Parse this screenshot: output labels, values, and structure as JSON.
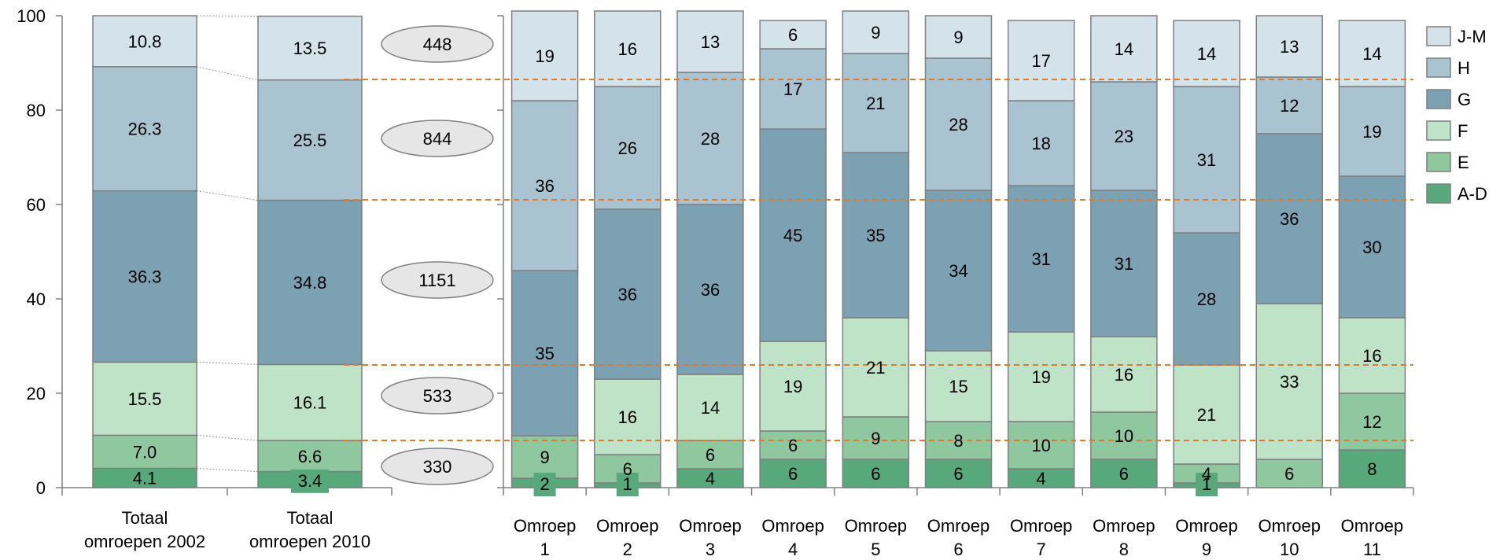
{
  "chart_data": {
    "type": "bar",
    "stacked": true,
    "ylim": [
      0,
      100
    ],
    "yticks": [
      0,
      20,
      40,
      60,
      80,
      100
    ],
    "series": [
      {
        "name": "A-D",
        "color": "#57a97c"
      },
      {
        "name": "E",
        "color": "#8fc79e"
      },
      {
        "name": "F",
        "color": "#bfe3c6"
      },
      {
        "name": "G",
        "color": "#7ba1b3"
      },
      {
        "name": "H",
        "color": "#a9c4d0"
      },
      {
        "name": "J-M",
        "color": "#d4e3ea"
      }
    ],
    "legend": [
      "J-M",
      "H",
      "G",
      "F",
      "E",
      "A-D"
    ],
    "legend_position": "right",
    "bars": [
      {
        "label": [
          "Totaal",
          "omroepen 2002"
        ],
        "values": [
          4.1,
          7.0,
          15.5,
          36.3,
          26.3,
          10.8
        ],
        "labels": [
          "4.1",
          "7.0",
          "15.5",
          "36.3",
          "26.3",
          "10.8"
        ]
      },
      {
        "label": [
          "Totaal",
          "omroepen 2010"
        ],
        "values": [
          3.4,
          6.6,
          16.1,
          34.8,
          25.5,
          13.5
        ],
        "labels": [
          "3.4",
          "6.6",
          "16.1",
          "34.8",
          "25.5",
          "13.5"
        ]
      },
      {
        "label": [
          "Omroep",
          "1"
        ],
        "values": [
          2,
          9,
          0,
          35,
          36,
          19
        ],
        "labels": [
          "2",
          "9",
          "",
          "35",
          "36",
          "19"
        ]
      },
      {
        "label": [
          "Omroep",
          "2"
        ],
        "values": [
          1,
          6,
          16,
          36,
          26,
          16
        ],
        "labels": [
          "1",
          "6",
          "16",
          "36",
          "26",
          "16"
        ]
      },
      {
        "label": [
          "Omroep",
          "3"
        ],
        "values": [
          4,
          6,
          14,
          36,
          28,
          13
        ],
        "labels": [
          "4",
          "6",
          "14",
          "36",
          "28",
          "13"
        ]
      },
      {
        "label": [
          "Omroep",
          "4"
        ],
        "values": [
          6,
          6,
          19,
          45,
          17,
          6
        ],
        "labels": [
          "6",
          "6",
          "19",
          "45",
          "17",
          "6"
        ]
      },
      {
        "label": [
          "Omroep",
          "5"
        ],
        "values": [
          6,
          9,
          21,
          35,
          21,
          9
        ],
        "labels": [
          "6",
          "9",
          "21",
          "35",
          "21",
          "9"
        ]
      },
      {
        "label": [
          "Omroep",
          "6"
        ],
        "values": [
          6,
          8,
          15,
          34,
          28,
          9
        ],
        "labels": [
          "6",
          "8",
          "15",
          "34",
          "28",
          "9"
        ]
      },
      {
        "label": [
          "Omroep",
          "7"
        ],
        "values": [
          4,
          10,
          19,
          31,
          18,
          17
        ],
        "labels": [
          "4",
          "10",
          "19",
          "31",
          "18",
          "17"
        ]
      },
      {
        "label": [
          "Omroep",
          "8"
        ],
        "values": [
          6,
          10,
          16,
          31,
          23,
          14
        ],
        "labels": [
          "6",
          "10",
          "16",
          "31",
          "23",
          "14"
        ]
      },
      {
        "label": [
          "Omroep",
          "9"
        ],
        "values": [
          1,
          4,
          21,
          28,
          31,
          14
        ],
        "labels": [
          "1",
          "4",
          "21",
          "28",
          "31",
          "14"
        ]
      },
      {
        "label": [
          "Omroep",
          "10"
        ],
        "values": [
          0,
          6,
          33,
          36,
          12,
          13
        ],
        "labels": [
          "",
          "6",
          "33",
          "36",
          "12",
          "13"
        ]
      },
      {
        "label": [
          "Omroep",
          "11"
        ],
        "values": [
          8,
          12,
          16,
          30,
          19,
          14
        ],
        "labels": [
          "8",
          "12",
          "16",
          "30",
          "19",
          "14"
        ]
      }
    ],
    "bubbles": [
      {
        "value": 448,
        "y": 94
      },
      {
        "value": 844,
        "y": 74
      },
      {
        "value": 1151,
        "y": 44
      },
      {
        "value": 533,
        "y": 19.5
      },
      {
        "value": 330,
        "y": 4.5
      }
    ],
    "reference_lines": [
      86.5,
      61,
      26,
      10
    ],
    "reference_line_color": "#e07b2a",
    "grid": false
  }
}
